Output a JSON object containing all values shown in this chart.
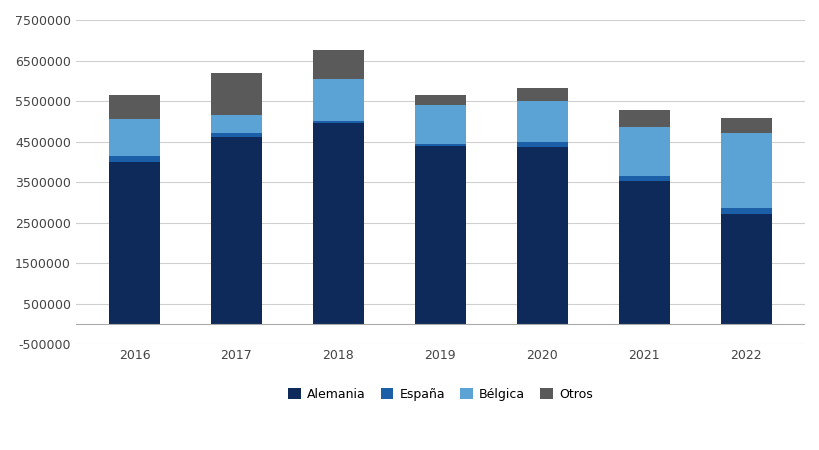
{
  "years": [
    "2016",
    "2017",
    "2018",
    "2019",
    "2020",
    "2021",
    "2022"
  ],
  "alemania": [
    4000000,
    4600000,
    4950000,
    4400000,
    4370000,
    3530000,
    2720000
  ],
  "espana": [
    150000,
    100000,
    50000,
    50000,
    130000,
    130000,
    130000
  ],
  "belgica": [
    900000,
    450000,
    1050000,
    950000,
    1000000,
    1200000,
    1850000
  ],
  "otros": [
    600000,
    1050000,
    700000,
    250000,
    325000,
    430000,
    370000
  ],
  "color_alemania": "#0e2a5a",
  "color_espana": "#1a5fa8",
  "color_belgica": "#5ba3d4",
  "color_otros": "#5a5a5a",
  "ylim_min": -500000,
  "ylim_max": 7500000,
  "yticks": [
    -500000,
    500000,
    1500000,
    2500000,
    3500000,
    4500000,
    5500000,
    6500000,
    7500000
  ],
  "background_color": "#ffffff",
  "grid_color": "#d0d0d0",
  "legend_labels": [
    "Alemania",
    "España",
    "Bélgica",
    "Otros"
  ]
}
